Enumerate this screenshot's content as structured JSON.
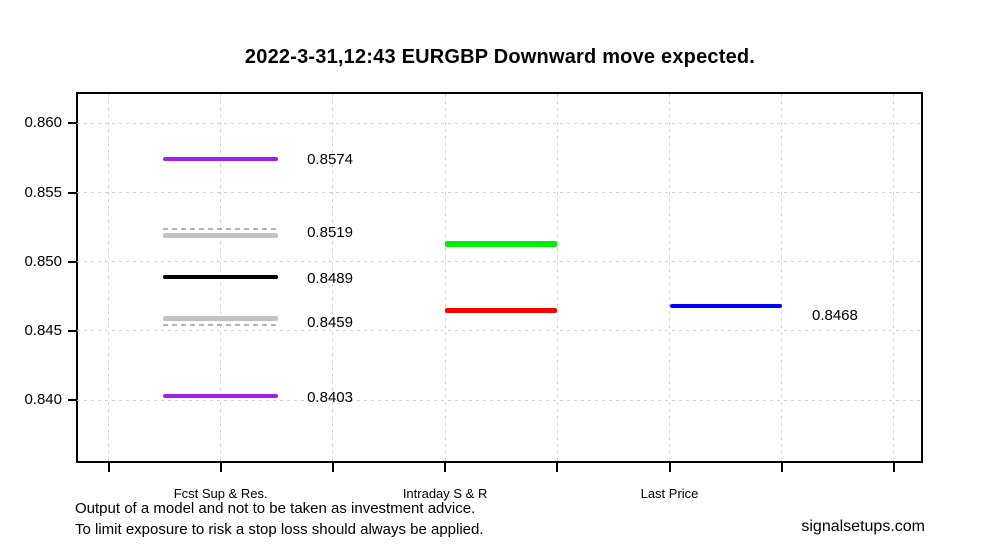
{
  "title": "2022-3-31,12:43 EURGBP Downward move expected.",
  "footer": {
    "line1": "Output of a model and not to be taken as investment advice.",
    "line2": "To limit exposure to risk a stop loss should always be applied.",
    "watermark": "signalsetups.com"
  },
  "colors": {
    "forecast_extreme": "#A020F0",
    "forecast_zone": "#C2C2C2",
    "forecast_pivot": "#000000",
    "intraday_resistance": "#00EE00",
    "intraday_support": "#FF0000",
    "last_price": "#0000FF",
    "grid": "#d2d2d2"
  },
  "chart_data": {
    "type": "line",
    "subtype": "horizontal-price-segments",
    "title": "2022-3-31,12:43 EURGBP Downward move expected.",
    "xlabel": "",
    "ylabel": "",
    "ylim": [
      0.8356,
      0.8622
    ],
    "grid": true,
    "legend": "none",
    "y_ticks": [
      {
        "value": 0.86,
        "label": "0.860"
      },
      {
        "value": 0.855,
        "label": "0.855"
      },
      {
        "value": 0.85,
        "label": "0.850"
      },
      {
        "value": 0.845,
        "label": "0.845"
      },
      {
        "value": 0.84,
        "label": "0.840"
      }
    ],
    "x_tick_count": 8,
    "x_groups": [
      {
        "label": "Fcst Sup & Res.",
        "tick": 2
      },
      {
        "label": "Intraday S & R",
        "tick": 4
      },
      {
        "label": "Last Price",
        "tick": 6
      }
    ],
    "segments": [
      {
        "name": "fcst-resistance-upper",
        "group": "Fcst Sup & Res.",
        "value": 0.8574,
        "label": "0.8574",
        "color": "#A020F0",
        "thickness": 4,
        "span": [
          1.49,
          2.51
        ],
        "label_t": 2.77,
        "label_dy": 1
      },
      {
        "name": "fcst-zone-upper",
        "group": "Fcst Sup & Res.",
        "value": 0.8519,
        "label": "0.8519",
        "color": "#C2C2C2",
        "thickness": 5,
        "span": [
          1.49,
          2.51
        ],
        "label_t": 2.77,
        "label_dy": -2,
        "companion_dash_offset": -6
      },
      {
        "name": "fcst-pivot",
        "group": "Fcst Sup & Res.",
        "value": 0.8489,
        "label": "0.8489",
        "color": "#000000",
        "thickness": 4,
        "span": [
          1.49,
          2.51
        ],
        "label_t": 2.77,
        "label_dy": 2
      },
      {
        "name": "fcst-zone-lower",
        "group": "Fcst Sup & Res.",
        "value": 0.8459,
        "label": "0.8459",
        "color": "#C2C2C2",
        "thickness": 5,
        "span": [
          1.49,
          2.51
        ],
        "label_t": 2.77,
        "label_dy": 4,
        "companion_dash_offset": 6
      },
      {
        "name": "fcst-support-lower",
        "group": "Fcst Sup & Res.",
        "value": 0.8403,
        "label": "0.8403",
        "color": "#A020F0",
        "thickness": 4,
        "span": [
          1.49,
          2.51
        ],
        "label_t": 2.77,
        "label_dy": 2
      },
      {
        "name": "intraday-resistance",
        "group": "Intraday S & R",
        "value": 0.8513,
        "label": "",
        "color": "#00EE00",
        "thickness": 6,
        "span": [
          4,
          5
        ]
      },
      {
        "name": "intraday-support",
        "group": "Intraday S & R",
        "value": 0.8465,
        "label": "",
        "color": "#FF0000",
        "thickness": 5,
        "span": [
          4,
          5
        ]
      },
      {
        "name": "last-price",
        "group": "Last Price",
        "value": 0.8468,
        "label": "0.8468",
        "color": "#0000FF",
        "thickness": 4,
        "span": [
          6,
          7
        ],
        "label_t": 7.27,
        "label_dy": 10
      }
    ]
  }
}
